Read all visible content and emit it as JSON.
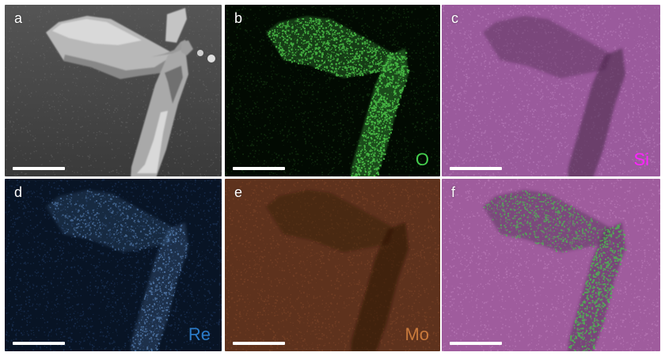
{
  "panels": [
    {
      "id": "a",
      "letter": "a",
      "element": "",
      "kind": "sem",
      "colors": {
        "base": "#4a4a4a",
        "noise": "#777777",
        "crystal_light": "#d9d9d9",
        "crystal_mid": "#a9a9a9",
        "crystal_dark": "#7a7a7a"
      }
    },
    {
      "id": "b",
      "letter": "b",
      "element": "O",
      "kind": "map-bright",
      "colors": {
        "base": "#020a02",
        "noise": "#24561f",
        "signal": "#4bc048",
        "label": "#45d04e"
      }
    },
    {
      "id": "c",
      "letter": "c",
      "element": "Si",
      "kind": "map-dark",
      "colors": {
        "base": "#9a5a9c",
        "noise": "#c48ac7",
        "shadow": "#452445",
        "label": "#ff22ff"
      }
    },
    {
      "id": "d",
      "letter": "d",
      "element": "Re",
      "kind": "map-faint",
      "colors": {
        "base": "#081425",
        "noise": "#294777",
        "signal": "#5f8bc2",
        "label": "#2b7bc8"
      }
    },
    {
      "id": "e",
      "letter": "e",
      "element": "Mo",
      "kind": "map-dark",
      "colors": {
        "base": "#5e321d",
        "noise": "#8c4e2e",
        "shadow": "#2a1409",
        "label": "#c97a3c"
      }
    },
    {
      "id": "f",
      "letter": "f",
      "element": "",
      "kind": "overlay",
      "colors": {
        "base": "#9f5c9d",
        "noise": "#ca8dc8",
        "shadow": "#4a2d4d",
        "signal": "#49c44d"
      }
    }
  ]
}
